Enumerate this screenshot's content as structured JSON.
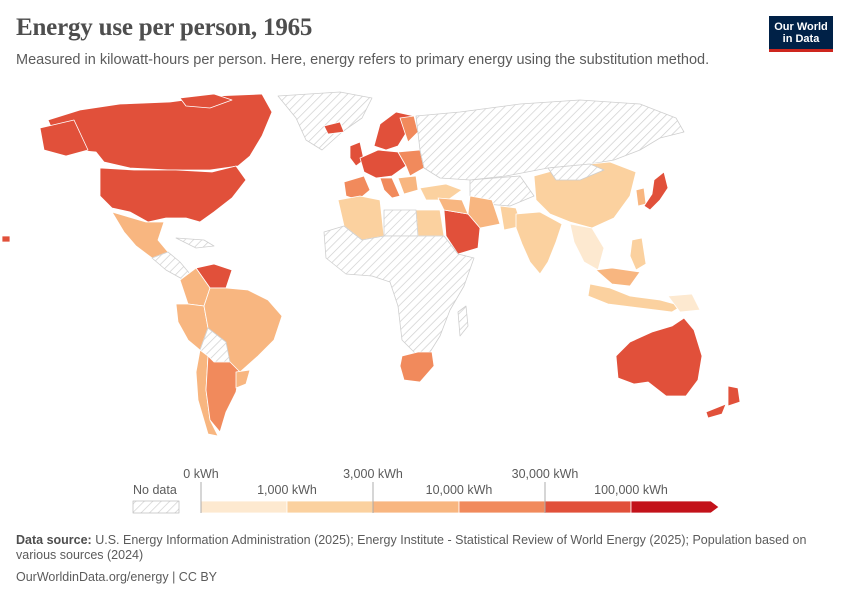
{
  "title": "Energy use per person, 1965",
  "subtitle": "Measured in kilowatt-hours per person. Here, energy refers to primary energy using the substitution method.",
  "logo": {
    "line1": "Our World",
    "line2": "in Data",
    "bg": "#002147",
    "accent": "#ce261e"
  },
  "legend": {
    "no_data_label": "No data",
    "upper_labels": [
      "0 kWh",
      "3,000 kWh",
      "30,000 kWh"
    ],
    "lower_labels": [
      "1,000 kWh",
      "10,000 kWh",
      "100,000 kWh"
    ],
    "bins": [
      "0–1,000 kWh",
      "1,000–3,000 kWh",
      "3,000–10,000 kWh",
      "10,000–30,000 kWh",
      "30,000–100,000 kWh",
      ">100,000 kWh"
    ],
    "colors": [
      "#fde9d0",
      "#fbd19f",
      "#f8b680",
      "#f18a5c",
      "#e1503a",
      "#c3121a"
    ],
    "no_data_color": "#e8e8e8"
  },
  "footer": {
    "source_label": "Data source:",
    "source_text": "U.S. Energy Information Administration (2025); Energy Institute - Statistical Review of World Energy (2025); Population based on various sources (2024)",
    "url": "OurWorldinData.org/energy | CC BY"
  }
}
